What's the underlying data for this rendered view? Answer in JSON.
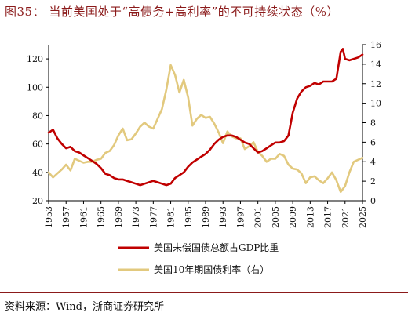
{
  "title": "图35：  当前美国处于“高债务+高利率”的不可持续状态（%）",
  "source": "资料来源：Wind，浙商证券研究所",
  "chart_data": {
    "type": "line",
    "x_tick_labels": [
      "1953",
      "1957",
      "1961",
      "1965",
      "1969",
      "1973",
      "1977",
      "1981",
      "1985",
      "1989",
      "1993",
      "1997",
      "2001",
      "2005",
      "2009",
      "2013",
      "2017",
      "2021",
      "2025"
    ],
    "xlim": [
      1953,
      2025
    ],
    "y_left": {
      "ticks": [
        20,
        40,
        60,
        80,
        100,
        120
      ],
      "lim": [
        20,
        130
      ]
    },
    "y_right": {
      "ticks": [
        0,
        2,
        4,
        6,
        8,
        10,
        12,
        14,
        16
      ],
      "lim": [
        0,
        16
      ]
    },
    "grid": false,
    "legend_position": "bottom",
    "series": [
      {
        "name": "美国未偿国债总额占GDP比重",
        "axis": "left",
        "color": "#c00000",
        "x": [
          1953,
          1954,
          1955,
          1956,
          1957,
          1958,
          1959,
          1960,
          1961,
          1962,
          1963,
          1964,
          1965,
          1966,
          1967,
          1968,
          1969,
          1970,
          1971,
          1972,
          1973,
          1974,
          1975,
          1976,
          1977,
          1978,
          1979,
          1980,
          1981,
          1982,
          1983,
          1984,
          1985,
          1986,
          1987,
          1988,
          1989,
          1990,
          1991,
          1992,
          1993,
          1994,
          1995,
          1996,
          1997,
          1998,
          1999,
          2000,
          2001,
          2002,
          2003,
          2004,
          2005,
          2006,
          2007,
          2008,
          2009,
          2010,
          2011,
          2012,
          2013,
          2014,
          2015,
          2016,
          2017,
          2018,
          2019,
          2020,
          2020.5,
          2021,
          2022,
          2023,
          2024,
          2025
        ],
        "values": [
          68,
          70,
          64,
          60,
          57,
          58,
          55,
          54,
          52,
          50,
          48,
          46,
          43,
          39,
          38,
          36,
          35,
          35,
          34,
          33,
          32,
          31,
          32,
          33,
          34,
          33,
          32,
          31,
          32,
          36,
          38,
          40,
          44,
          47,
          49,
          51,
          53,
          56,
          60,
          63,
          65,
          66,
          66,
          65,
          63,
          61,
          60,
          57,
          54,
          55,
          57,
          59,
          61,
          61,
          62,
          66,
          82,
          92,
          97,
          100,
          101,
          103,
          102,
          104,
          104,
          104,
          106,
          125,
          127,
          120,
          119,
          120,
          121,
          123
        ]
      },
      {
        "name": "美国10年期国债利率（右）",
        "axis": "right",
        "color": "#e2c97e",
        "x": [
          1953,
          1954,
          1955,
          1956,
          1957,
          1958,
          1959,
          1960,
          1961,
          1962,
          1963,
          1964,
          1965,
          1966,
          1967,
          1968,
          1969,
          1970,
          1971,
          1972,
          1973,
          1974,
          1975,
          1976,
          1977,
          1978,
          1979,
          1980,
          1981,
          1982,
          1983,
          1984,
          1985,
          1986,
          1987,
          1988,
          1989,
          1990,
          1991,
          1992,
          1993,
          1994,
          1995,
          1996,
          1997,
          1998,
          1999,
          2000,
          2001,
          2002,
          2003,
          2004,
          2005,
          2006,
          2007,
          2008,
          2009,
          2010,
          2011,
          2012,
          2013,
          2014,
          2015,
          2016,
          2017,
          2018,
          2019,
          2020,
          2021,
          2022,
          2023,
          2024,
          2025
        ],
        "values": [
          2.9,
          2.4,
          2.8,
          3.2,
          3.7,
          3.1,
          4.3,
          4.1,
          3.9,
          4.0,
          4.0,
          4.2,
          4.3,
          4.9,
          5.1,
          5.7,
          6.7,
          7.4,
          6.2,
          6.3,
          6.9,
          7.6,
          8.0,
          7.6,
          7.4,
          8.4,
          9.4,
          11.4,
          13.9,
          12.9,
          11.1,
          12.4,
          10.6,
          7.7,
          8.4,
          8.8,
          8.5,
          8.6,
          7.9,
          7.0,
          5.9,
          7.1,
          6.6,
          6.4,
          6.4,
          5.3,
          5.6,
          6.0,
          5.0,
          4.6,
          4.0,
          4.3,
          4.3,
          4.8,
          4.6,
          3.7,
          3.3,
          3.2,
          2.8,
          1.8,
          2.4,
          2.5,
          2.1,
          1.8,
          2.3,
          2.9,
          2.1,
          0.9,
          1.5,
          2.9,
          4.0,
          4.2,
          4.4
        ]
      }
    ]
  }
}
